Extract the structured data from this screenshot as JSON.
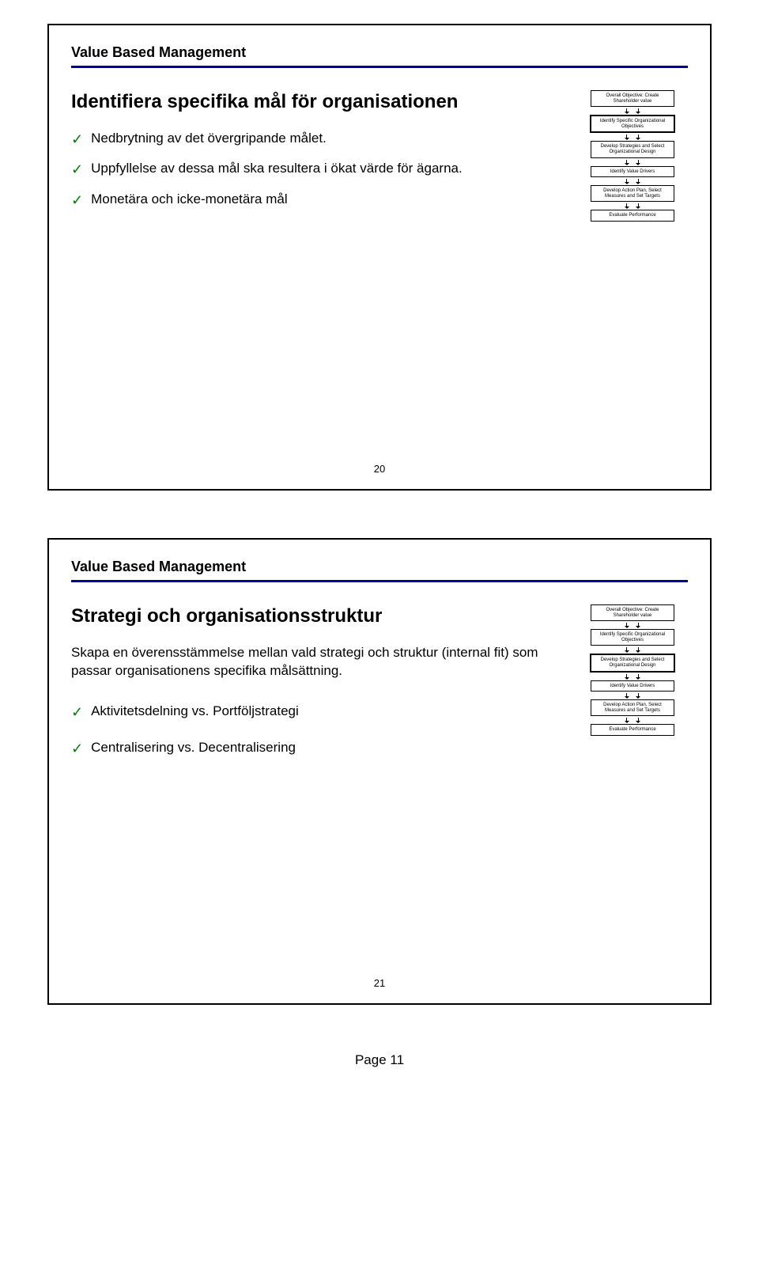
{
  "slide1": {
    "header": "Value Based Management",
    "title": "Identifiera specifika mål för organisationen",
    "items": [
      "Nedbrytning av det övergripande målet.",
      "Uppfyllelse av dessa mål ska resultera i ökat värde för ägarna.",
      "Monetära och icke-monetära mål"
    ],
    "slide_number": "20",
    "flowchart": {
      "highlight_index": 1,
      "boxes": [
        "Overall Objective: Create Shareholder value",
        "Identify Specific Organizational Objectives",
        "Develop Strategies and Select Organizational Design",
        "Identify Value Drivers",
        "Develop Action Plan, Select Measures and Set Targets",
        "Evaluate Performance"
      ]
    }
  },
  "slide2": {
    "header": "Value Based Management",
    "title": "Strategi och organisationsstruktur",
    "body": "Skapa en överensstämmelse mellan vald strategi och struktur (internal fit) som passar organisationens specifika målsättning.",
    "items": [
      "Aktivitetsdelning vs. Portföljstrategi",
      "Centralisering vs. Decentralisering"
    ],
    "slide_number": "21",
    "flowchart": {
      "highlight_index": 2,
      "boxes": [
        "Overall Objective: Create Shareholder value",
        "Identify Specific Organizational Objectives",
        "Develop Strategies and Select Organizational Design",
        "Identify Value Drivers",
        "Develop Action Plan, Select Measures and Set Targets",
        "Evaluate Performance"
      ]
    }
  },
  "page_footer": "Page 11"
}
